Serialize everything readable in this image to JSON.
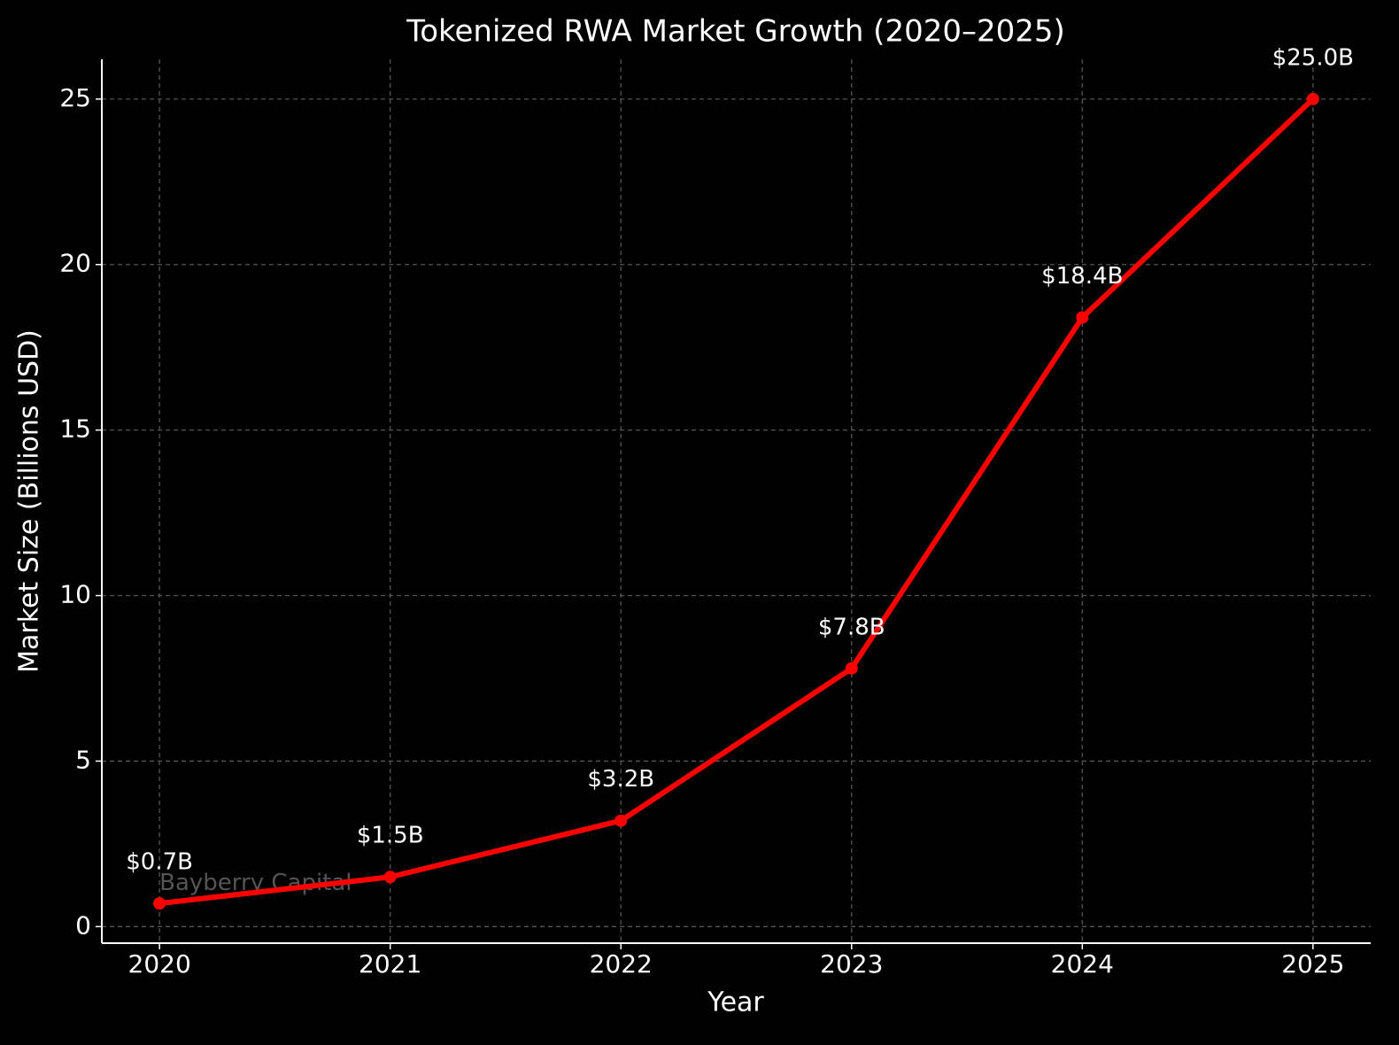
{
  "chart_data": {
    "type": "line",
    "title": "Tokenized RWA Market Growth (2020–2025)",
    "x_label": "Year",
    "y_label": "Market Size (Billions USD)",
    "x": [
      2020,
      2021,
      2022,
      2023,
      2024,
      2025
    ],
    "values": [
      0.7,
      1.5,
      3.2,
      7.8,
      18.4,
      25.0
    ],
    "value_labels": [
      "$0.7B",
      "$1.5B",
      "$3.2B",
      "$7.8B",
      "$18.4B",
      "$25.0B"
    ],
    "color": "#ff0000",
    "xlim": [
      2019.75,
      2025.25
    ],
    "xticks": [
      2020,
      2021,
      2022,
      2023,
      2024,
      2025
    ],
    "ylim": [
      -0.5,
      26.2
    ],
    "yticks": [
      0,
      5,
      10,
      15,
      20,
      25
    ],
    "grid": true,
    "annotation": "Bayberry Capital"
  }
}
